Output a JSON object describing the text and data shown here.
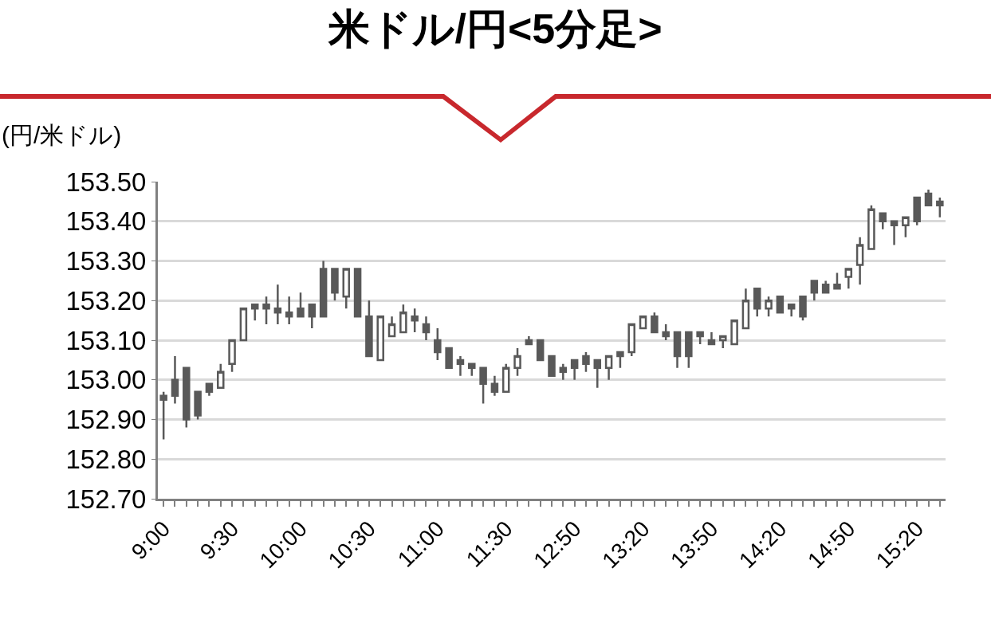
{
  "chart_data": {
    "type": "candlestick",
    "title": "米ドル/円<5分足>",
    "ylabel": "(円/米ドル)",
    "categories": [
      "9:00",
      null,
      null,
      null,
      null,
      null,
      "9:30",
      null,
      null,
      null,
      null,
      null,
      "10:00",
      null,
      null,
      null,
      null,
      null,
      "10:30",
      null,
      null,
      null,
      null,
      null,
      "11:00",
      null,
      null,
      null,
      null,
      null,
      "11:30",
      null,
      null,
      null,
      null,
      null,
      "12:50",
      null,
      null,
      null,
      null,
      null,
      "13:20",
      null,
      null,
      null,
      null,
      null,
      "13:50",
      null,
      null,
      null,
      null,
      null,
      "14:20",
      null,
      null,
      null,
      null,
      null,
      "14:50",
      null,
      null,
      null,
      null,
      null,
      "15:20",
      null,
      null
    ],
    "ohlc": [
      [
        152.96,
        152.97,
        152.85,
        152.95
      ],
      [
        153.0,
        153.06,
        152.94,
        152.96
      ],
      [
        153.03,
        153.03,
        152.88,
        152.9
      ],
      [
        152.97,
        152.97,
        152.9,
        152.91
      ],
      [
        152.99,
        152.99,
        152.96,
        152.97
      ],
      [
        152.98,
        153.04,
        152.98,
        153.02
      ],
      [
        153.04,
        153.1,
        153.02,
        153.1
      ],
      [
        153.1,
        153.18,
        153.1,
        153.18
      ],
      [
        153.19,
        153.19,
        153.15,
        153.18
      ],
      [
        153.19,
        153.21,
        153.14,
        153.18
      ],
      [
        153.18,
        153.24,
        153.14,
        153.17
      ],
      [
        153.17,
        153.21,
        153.14,
        153.16
      ],
      [
        153.18,
        153.22,
        153.16,
        153.16
      ],
      [
        153.19,
        153.19,
        153.13,
        153.16
      ],
      [
        153.28,
        153.3,
        153.16,
        153.16
      ],
      [
        153.28,
        153.28,
        153.2,
        153.22
      ],
      [
        153.21,
        153.28,
        153.18,
        153.28
      ],
      [
        153.28,
        153.28,
        153.16,
        153.16
      ],
      [
        153.16,
        153.2,
        153.06,
        153.06
      ],
      [
        153.05,
        153.16,
        153.05,
        153.16
      ],
      [
        153.11,
        153.16,
        153.11,
        153.14
      ],
      [
        153.12,
        153.19,
        153.12,
        153.17
      ],
      [
        153.16,
        153.18,
        153.12,
        153.15
      ],
      [
        153.14,
        153.16,
        153.1,
        153.12
      ],
      [
        153.1,
        153.13,
        153.05,
        153.07
      ],
      [
        153.08,
        153.08,
        153.03,
        153.03
      ],
      [
        153.05,
        153.06,
        153.01,
        153.04
      ],
      [
        153.04,
        153.04,
        153.01,
        153.03
      ],
      [
        153.03,
        153.03,
        152.94,
        152.99
      ],
      [
        152.99,
        153.01,
        152.96,
        152.97
      ],
      [
        152.97,
        153.04,
        152.97,
        153.03
      ],
      [
        153.03,
        153.08,
        153.01,
        153.06
      ],
      [
        153.1,
        153.11,
        153.09,
        153.09
      ],
      [
        153.1,
        153.1,
        153.05,
        153.05
      ],
      [
        153.06,
        153.06,
        153.01,
        153.01
      ],
      [
        153.03,
        153.04,
        153.0,
        153.02
      ],
      [
        153.05,
        153.05,
        153.0,
        153.03
      ],
      [
        153.06,
        153.07,
        153.02,
        153.04
      ],
      [
        153.05,
        153.05,
        152.98,
        153.03
      ],
      [
        153.03,
        153.06,
        153.0,
        153.06
      ],
      [
        153.07,
        153.07,
        153.03,
        153.06
      ],
      [
        153.07,
        153.14,
        153.06,
        153.14
      ],
      [
        153.13,
        153.16,
        153.13,
        153.16
      ],
      [
        153.16,
        153.17,
        153.12,
        153.12
      ],
      [
        153.12,
        153.14,
        153.1,
        153.11
      ],
      [
        153.12,
        153.12,
        153.03,
        153.06
      ],
      [
        153.12,
        153.12,
        153.03,
        153.06
      ],
      [
        153.12,
        153.12,
        153.09,
        153.11
      ],
      [
        153.1,
        153.12,
        153.09,
        153.09
      ],
      [
        153.1,
        153.11,
        153.08,
        153.11
      ],
      [
        153.09,
        153.15,
        153.09,
        153.15
      ],
      [
        153.13,
        153.23,
        153.13,
        153.2
      ],
      [
        153.23,
        153.23,
        153.16,
        153.18
      ],
      [
        153.18,
        153.21,
        153.16,
        153.2
      ],
      [
        153.21,
        153.21,
        153.17,
        153.17
      ],
      [
        153.19,
        153.19,
        153.16,
        153.18
      ],
      [
        153.21,
        153.21,
        153.15,
        153.16
      ],
      [
        153.25,
        153.25,
        153.2,
        153.22
      ],
      [
        153.24,
        153.25,
        153.22,
        153.22
      ],
      [
        153.24,
        153.27,
        153.23,
        153.23
      ],
      [
        153.26,
        153.28,
        153.23,
        153.28
      ],
      [
        153.29,
        153.36,
        153.24,
        153.34
      ],
      [
        153.33,
        153.44,
        153.33,
        153.43
      ],
      [
        153.42,
        153.42,
        153.38,
        153.4
      ],
      [
        153.4,
        153.4,
        153.34,
        153.39
      ],
      [
        153.39,
        153.41,
        153.36,
        153.41
      ],
      [
        153.46,
        153.46,
        153.39,
        153.4
      ],
      [
        153.47,
        153.48,
        153.44,
        153.44
      ],
      [
        153.45,
        153.46,
        153.41,
        153.44
      ]
    ],
    "color": "#595959",
    "ylim": [
      152.7,
      153.5
    ],
    "yticks": [
      {
        "value": 152.7,
        "label": "152.70"
      },
      {
        "value": 152.8,
        "label": "152.80"
      },
      {
        "value": 152.9,
        "label": "152.90"
      },
      {
        "value": 153.0,
        "label": "153.00"
      },
      {
        "value": 153.1,
        "label": "153.10"
      },
      {
        "value": 153.2,
        "label": "153.20"
      },
      {
        "value": 153.3,
        "label": "153.30"
      },
      {
        "value": 153.4,
        "label": "153.40"
      },
      {
        "value": 153.5,
        "label": "153.50"
      }
    ],
    "grid": "y"
  }
}
